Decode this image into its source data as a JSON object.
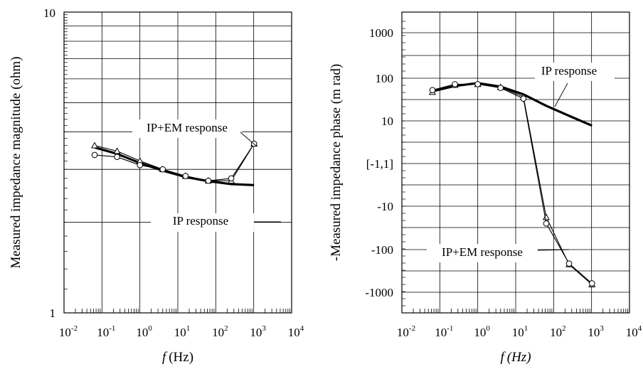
{
  "chart_data": [
    {
      "type": "line",
      "xscale": "log",
      "yscale": "log",
      "xlabel_var": "f",
      "xlabel_unit": "(Hz)",
      "ylabel": "Measured impedance magnitude (ohm)",
      "xlim": [
        0.01,
        10000
      ],
      "ylim": [
        1,
        10
      ],
      "x_ticks": [
        {
          "base": "10",
          "exp": "-2"
        },
        {
          "base": "10",
          "exp": "-1"
        },
        {
          "base": "10",
          "exp": "0"
        },
        {
          "base": "10",
          "exp": "1"
        },
        {
          "base": "10",
          "exp": "2"
        },
        {
          "base": "10",
          "exp": "3"
        },
        {
          "base": "10",
          "exp": "4"
        }
      ],
      "y_ticks": [
        "10",
        "1"
      ],
      "grid": true,
      "annotations": [
        "IP+EM response",
        "IP response"
      ],
      "series": [
        {
          "style": "thick",
          "x": [
            0.064,
            0.25,
            1,
            4,
            16,
            64,
            256,
            1024
          ],
          "y": [
            3.55,
            3.38,
            3.15,
            2.97,
            2.83,
            2.74,
            2.68,
            2.66
          ]
        },
        {
          "style": "triangles",
          "x": [
            0.064,
            0.25,
            1,
            4,
            16,
            64,
            256,
            1024
          ],
          "y": [
            3.6,
            3.45,
            3.2,
            3.0,
            2.85,
            2.75,
            2.75,
            3.65
          ]
        },
        {
          "style": "circles",
          "x": [
            0.064,
            0.25,
            1,
            4,
            16,
            64,
            256,
            1024
          ],
          "y": [
            3.35,
            3.3,
            3.1,
            3.0,
            2.85,
            2.75,
            2.8,
            3.65
          ]
        }
      ]
    },
    {
      "type": "line",
      "xscale": "log",
      "yscale": "symlog",
      "xlabel_var": "f",
      "xlabel_unit": "(Hz)",
      "ylabel": "-Measured impedance phase (m rad)",
      "xlim": [
        0.01,
        10000
      ],
      "y_ticks": [
        "1000",
        "100",
        "10",
        "[-1,1]",
        "-10",
        "-100",
        "-1000"
      ],
      "x_ticks": [
        {
          "base": "10",
          "exp": "-2"
        },
        {
          "base": "10",
          "exp": "-1"
        },
        {
          "base": "10",
          "exp": "0"
        },
        {
          "base": "10",
          "exp": "1"
        },
        {
          "base": "10",
          "exp": "2"
        },
        {
          "base": "10",
          "exp": "3"
        },
        {
          "base": "10",
          "exp": "4"
        }
      ],
      "grid": true,
      "annotations": [
        "IP response",
        "IP+EM response"
      ],
      "series": [
        {
          "style": "thick",
          "x": [
            0.064,
            0.25,
            1,
            4,
            16,
            64,
            256,
            1024
          ],
          "y": [
            47,
            62,
            72,
            60,
            40,
            22,
            13,
            8
          ]
        },
        {
          "style": "triangles",
          "x": [
            0.064,
            0.25,
            1,
            4,
            16,
            64,
            256,
            1024
          ],
          "y": [
            45,
            65,
            68,
            58,
            35,
            -18,
            -220,
            -640
          ]
        },
        {
          "style": "circles",
          "x": [
            0.064,
            0.25,
            1,
            4,
            16,
            64,
            256,
            1024
          ],
          "y": [
            50,
            68,
            68,
            56,
            32,
            -25,
            -210,
            -600
          ]
        }
      ]
    }
  ]
}
